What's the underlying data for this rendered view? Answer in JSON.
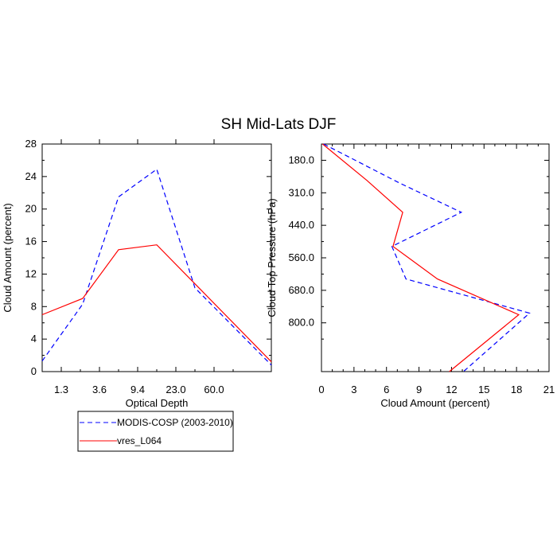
{
  "title": "SH Mid-Lats DJF",
  "colors": {
    "modis": "#0000ff",
    "model": "#ff0000",
    "axis": "#000000"
  },
  "legend": {
    "entries": [
      {
        "label": "MODIS-COSP (2003-2010)",
        "style": "dashed",
        "color": "#0000ff"
      },
      {
        "label": "vres_L064",
        "style": "solid",
        "color": "#ff0000"
      }
    ]
  },
  "chart_data": [
    {
      "type": "line",
      "name": "optical-depth-panel",
      "xlabel": "Optical Depth",
      "ylabel": "Cloud Amount (percent)",
      "ylim": [
        0,
        28
      ],
      "y_ticks": [
        "0",
        "4",
        "8",
        "12",
        "16",
        "20",
        "24",
        "28"
      ],
      "x_tick_labels": [
        "1.3",
        "3.6",
        "9.4",
        "23.0",
        "60.0"
      ],
      "x_positions": [
        0,
        1,
        2,
        3,
        4,
        5,
        6
      ],
      "series": [
        {
          "name": "MODIS-COSP (2003-2010)",
          "values": [
            1.3,
            8.3,
            21.5,
            24.9,
            10.3,
            0.8
          ]
        },
        {
          "name": "vres_L064",
          "values": [
            7.0,
            9.0,
            15.0,
            15.6,
            10.8,
            1.2
          ]
        }
      ]
    },
    {
      "type": "line",
      "name": "pressure-panel",
      "xlabel": "Cloud Amount (percent)",
      "ylabel": "Cloud Top Pressure (hPa)",
      "xlim": [
        0,
        21
      ],
      "x_ticks": [
        "0",
        "3",
        "6",
        "9",
        "12",
        "15",
        "18",
        "21"
      ],
      "y_tick_labels": [
        "180.0",
        "310.0",
        "440.0",
        "560.0",
        "680.0",
        "800.0"
      ],
      "y_range_levels": [
        0,
        7
      ],
      "series": [
        {
          "name": "MODIS-COSP (2003-2010)",
          "values": [
            0.2,
            7.2,
            12.9,
            6.5,
            7.8,
            19.2,
            13.1
          ],
          "levels": [
            0,
            1.2,
            2.2,
            3.2,
            4.2,
            5.2,
            6.2
          ]
        },
        {
          "name": "vres_L064",
          "values": [
            0.1,
            4.2,
            7.5,
            6.6,
            10.7,
            18.2,
            11.8
          ],
          "levels": [
            0,
            1.2,
            2.2,
            3.2,
            4.2,
            5.2,
            6.2
          ]
        }
      ]
    }
  ]
}
